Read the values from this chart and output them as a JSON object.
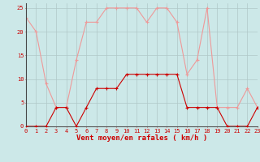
{
  "hours": [
    0,
    1,
    2,
    3,
    4,
    5,
    6,
    7,
    8,
    9,
    10,
    11,
    12,
    13,
    14,
    15,
    16,
    17,
    18,
    19,
    20,
    21,
    22,
    23
  ],
  "wind_avg": [
    0,
    0,
    0,
    4,
    4,
    0,
    4,
    8,
    8,
    8,
    11,
    11,
    11,
    11,
    11,
    11,
    4,
    4,
    4,
    4,
    0,
    0,
    0,
    4
  ],
  "wind_gust": [
    23,
    20,
    9,
    4,
    4,
    14,
    22,
    22,
    25,
    25,
    25,
    25,
    22,
    25,
    25,
    22,
    11,
    14,
    25,
    4,
    4,
    4,
    8,
    4
  ],
  "background_color": "#cce8e8",
  "grid_color": "#b0c8c8",
  "avg_color": "#cc0000",
  "gust_color": "#ee9999",
  "xlabel": "Vent moyen/en rafales ( km/h )",
  "xlabel_color": "#cc0000",
  "ylim": [
    0,
    26
  ],
  "yticks": [
    0,
    5,
    10,
    15,
    20,
    25
  ],
  "xlim": [
    0,
    23
  ],
  "tick_fontsize": 5.0,
  "label_fontsize": 6.5
}
